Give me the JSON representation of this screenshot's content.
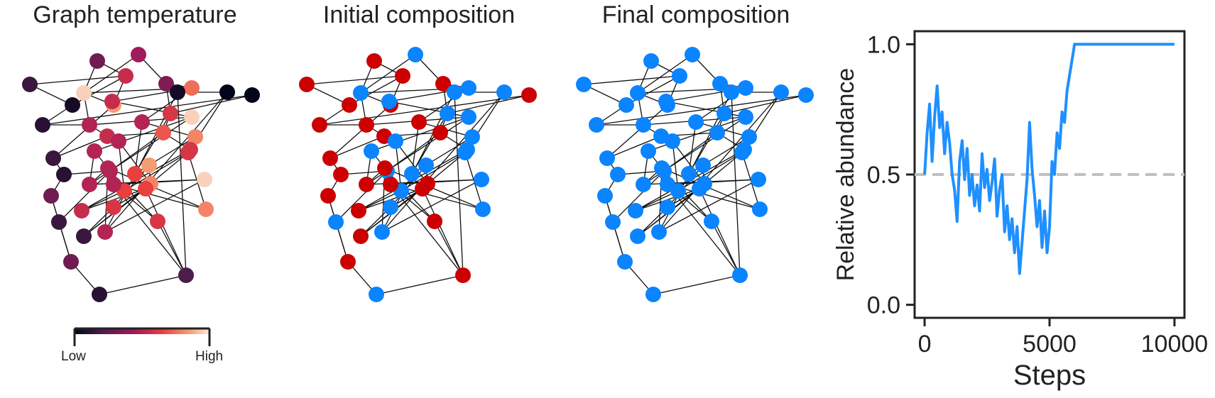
{
  "panels": {
    "temperature_title": "Graph temperature",
    "initial_title": "Initial composition",
    "final_title": "Final composition"
  },
  "colorbar": {
    "low_label": "Low",
    "high_label": "High"
  },
  "colors": {
    "red": "#cc0000",
    "blue": "#0a84ff",
    "line_blue": "#1e90ff",
    "dashed": "#c0c0c0",
    "edge": "#111111"
  },
  "chart_data": {
    "type": "line",
    "title": "",
    "xlabel": "Steps",
    "ylabel": "Relative abundance",
    "xlim": [
      -400,
      10400
    ],
    "ylim": [
      -0.05,
      1.05
    ],
    "xticks": [
      0,
      5000,
      10000
    ],
    "xtick_labels": [
      "0",
      "5000",
      "10000"
    ],
    "yticks": [
      0.0,
      0.5,
      1.0
    ],
    "ytick_labels": [
      "0.0",
      "0.5",
      "1.0"
    ],
    "reference_line": {
      "y": 0.5,
      "style": "dashed"
    },
    "series": [
      {
        "name": "relative abundance",
        "x": [
          0,
          100,
          200,
          300,
          400,
          500,
          600,
          700,
          800,
          900,
          1000,
          1100,
          1200,
          1300,
          1400,
          1500,
          1600,
          1700,
          1800,
          1900,
          2000,
          2100,
          2200,
          2300,
          2400,
          2500,
          2600,
          2700,
          2800,
          2900,
          3000,
          3100,
          3200,
          3300,
          3400,
          3500,
          3600,
          3700,
          3800,
          3900,
          4000,
          4100,
          4200,
          4300,
          4400,
          4500,
          4600,
          4700,
          4800,
          4900,
          5000,
          5100,
          5200,
          5300,
          5400,
          5500,
          5600,
          5700,
          5800,
          5900,
          6000,
          6100,
          6500,
          7000,
          8000,
          9000,
          10000
        ],
        "values": [
          0.5,
          0.66,
          0.77,
          0.55,
          0.72,
          0.84,
          0.68,
          0.74,
          0.58,
          0.7,
          0.62,
          0.5,
          0.44,
          0.32,
          0.55,
          0.63,
          0.48,
          0.6,
          0.42,
          0.5,
          0.38,
          0.46,
          0.36,
          0.58,
          0.45,
          0.52,
          0.4,
          0.47,
          0.56,
          0.34,
          0.44,
          0.5,
          0.28,
          0.38,
          0.25,
          0.33,
          0.2,
          0.3,
          0.12,
          0.24,
          0.36,
          0.48,
          0.7,
          0.52,
          0.42,
          0.3,
          0.4,
          0.22,
          0.36,
          0.2,
          0.3,
          0.55,
          0.5,
          0.66,
          0.6,
          0.74,
          0.7,
          0.82,
          0.88,
          0.94,
          1.0,
          1.0,
          1.0,
          1.0,
          1.0,
          1.0,
          1.0
        ]
      }
    ]
  },
  "graph": {
    "nodes": [
      {
        "temp": 0.15,
        "initial": "red",
        "final": "blue"
      },
      {
        "temp": 0.3,
        "initial": "red",
        "final": "blue"
      },
      {
        "temp": 0.45,
        "initial": "blue",
        "final": "blue"
      },
      {
        "temp": 0.05,
        "initial": "red",
        "final": "blue"
      },
      {
        "temp": 0.55,
        "initial": "red",
        "final": "blue"
      },
      {
        "temp": 0.95,
        "initial": "blue",
        "final": "blue"
      },
      {
        "temp": 0.1,
        "initial": "red",
        "final": "blue"
      },
      {
        "temp": 0.85,
        "initial": "red",
        "final": "blue"
      },
      {
        "temp": 0.35,
        "initial": "red",
        "final": "blue"
      },
      {
        "temp": 0.75,
        "initial": "blue",
        "final": "blue"
      },
      {
        "temp": 0.5,
        "initial": "red",
        "final": "blue"
      },
      {
        "temp": 0.0,
        "initial": "red",
        "final": "blue"
      },
      {
        "temp": 0.15,
        "initial": "red",
        "final": "blue"
      },
      {
        "temp": 0.6,
        "initial": "blue",
        "final": "blue"
      },
      {
        "temp": 0.55,
        "initial": "blue",
        "final": "blue"
      },
      {
        "temp": 0.5,
        "initial": "red",
        "final": "blue"
      },
      {
        "temp": 0.95,
        "initial": "blue",
        "final": "blue"
      },
      {
        "temp": 0.55,
        "initial": "red",
        "final": "blue"
      },
      {
        "temp": 0.7,
        "initial": "red",
        "final": "blue"
      },
      {
        "temp": 0.65,
        "initial": "blue",
        "final": "blue"
      },
      {
        "temp": 0.8,
        "initial": "blue",
        "final": "blue"
      },
      {
        "temp": 0.1,
        "initial": "red",
        "final": "blue"
      },
      {
        "temp": 0.5,
        "initial": "blue",
        "final": "blue"
      },
      {
        "temp": 0.5,
        "initial": "blue",
        "final": "blue"
      },
      {
        "temp": 0.5,
        "initial": "red",
        "final": "blue"
      },
      {
        "temp": 0.85,
        "initial": "blue",
        "final": "blue"
      },
      {
        "temp": 0.6,
        "initial": "blue",
        "final": "blue"
      },
      {
        "temp": 0.5,
        "initial": "blue",
        "final": "blue"
      },
      {
        "temp": 0.3,
        "initial": "red",
        "final": "blue"
      },
      {
        "temp": 0.5,
        "initial": "red",
        "final": "blue"
      },
      {
        "temp": 0.8,
        "initial": "red",
        "final": "blue"
      },
      {
        "temp": 0.65,
        "initial": "blue",
        "final": "blue"
      },
      {
        "temp": 0.95,
        "initial": "blue",
        "final": "blue"
      },
      {
        "temp": 0.6,
        "initial": "blue",
        "final": "blue"
      },
      {
        "temp": 0.55,
        "initial": "red",
        "final": "blue"
      },
      {
        "temp": 0.15,
        "initial": "blue",
        "final": "blue"
      },
      {
        "temp": 0.6,
        "initial": "red",
        "final": "blue"
      },
      {
        "temp": 0.5,
        "initial": "blue",
        "final": "blue"
      },
      {
        "temp": 0.15,
        "initial": "red",
        "final": "blue"
      },
      {
        "temp": 0.8,
        "initial": "blue",
        "final": "blue"
      },
      {
        "temp": 0.6,
        "initial": "blue",
        "final": "blue"
      },
      {
        "temp": 0.3,
        "initial": "red",
        "final": "blue"
      },
      {
        "temp": 0.5,
        "initial": "red",
        "final": "blue"
      },
      {
        "temp": 0.65,
        "initial": "red",
        "final": "blue"
      },
      {
        "temp": 0.1,
        "initial": "blue",
        "final": "blue"
      },
      {
        "temp": 0.2,
        "initial": "red",
        "final": "blue"
      },
      {
        "temp": 0.05,
        "initial": "blue",
        "final": "blue"
      },
      {
        "temp": 0.0,
        "initial": "blue",
        "final": "blue"
      }
    ],
    "edges": [
      [
        0,
        4
      ],
      [
        0,
        3
      ],
      [
        1,
        4
      ],
      [
        1,
        5
      ],
      [
        2,
        5
      ],
      [
        2,
        8
      ],
      [
        3,
        6
      ],
      [
        3,
        4
      ],
      [
        4,
        7
      ],
      [
        5,
        9
      ],
      [
        5,
        7
      ],
      [
        5,
        10
      ],
      [
        6,
        10
      ],
      [
        6,
        11
      ],
      [
        7,
        12
      ],
      [
        7,
        14
      ],
      [
        8,
        9
      ],
      [
        8,
        13
      ],
      [
        9,
        14
      ],
      [
        9,
        15
      ],
      [
        10,
        16
      ],
      [
        10,
        17
      ],
      [
        11,
        13
      ],
      [
        12,
        17
      ],
      [
        12,
        21
      ],
      [
        13,
        19
      ],
      [
        13,
        18
      ],
      [
        14,
        16
      ],
      [
        15,
        19
      ],
      [
        15,
        20
      ],
      [
        16,
        22
      ],
      [
        16,
        24
      ],
      [
        17,
        23
      ],
      [
        17,
        18
      ],
      [
        18,
        26
      ],
      [
        18,
        27
      ],
      [
        19,
        20
      ],
      [
        19,
        25
      ],
      [
        20,
        26
      ],
      [
        21,
        28
      ],
      [
        21,
        27
      ],
      [
        22,
        24
      ],
      [
        22,
        29
      ],
      [
        23,
        30
      ],
      [
        23,
        31
      ],
      [
        24,
        32
      ],
      [
        24,
        29
      ],
      [
        25,
        33
      ],
      [
        25,
        30
      ],
      [
        26,
        34
      ],
      [
        27,
        35
      ],
      [
        27,
        36
      ],
      [
        28,
        35
      ],
      [
        28,
        41
      ],
      [
        29,
        37
      ],
      [
        29,
        39
      ],
      [
        30,
        38
      ],
      [
        30,
        40
      ],
      [
        31,
        40
      ],
      [
        31,
        34
      ],
      [
        32,
        37
      ],
      [
        32,
        42
      ],
      [
        33,
        38
      ],
      [
        33,
        43
      ],
      [
        34,
        43
      ],
      [
        35,
        41
      ],
      [
        36,
        42
      ],
      [
        36,
        45
      ],
      [
        37,
        46
      ],
      [
        38,
        43
      ],
      [
        39,
        40
      ],
      [
        39,
        42
      ],
      [
        40,
        47
      ],
      [
        41,
        44
      ],
      [
        42,
        45
      ],
      [
        43,
        45
      ],
      [
        44,
        45
      ],
      [
        45,
        46
      ],
      [
        46,
        47
      ],
      [
        37,
        47
      ]
    ]
  }
}
